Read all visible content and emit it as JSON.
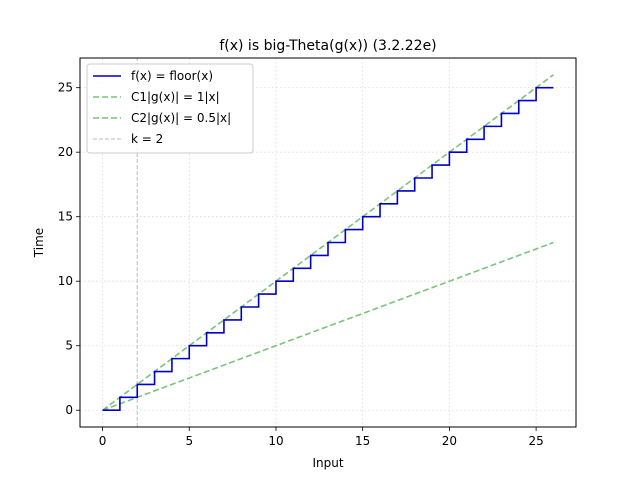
{
  "chart_data": {
    "type": "line",
    "title": "f(x) is big-Theta(g(x)) (3.2.22e)",
    "xlabel": "Input",
    "ylabel": "Time",
    "xlim": [
      -1.3,
      27.3
    ],
    "ylim": [
      -1.3,
      27.3
    ],
    "xticks": [
      0,
      5,
      10,
      15,
      20,
      25
    ],
    "yticks": [
      0,
      5,
      10,
      15,
      20,
      25
    ],
    "grid": true,
    "legend_position": "top-left",
    "series": [
      {
        "name": "f(x) = floor(x)",
        "kind": "step",
        "color": "#0000cc",
        "style": "solid",
        "x": [
          0,
          1,
          1,
          2,
          2,
          3,
          3,
          4,
          4,
          5,
          5,
          6,
          6,
          7,
          7,
          8,
          8,
          9,
          9,
          10,
          10,
          11,
          11,
          12,
          12,
          13,
          13,
          14,
          14,
          15,
          15,
          16,
          16,
          17,
          17,
          18,
          18,
          19,
          19,
          20,
          20,
          21,
          21,
          22,
          22,
          23,
          23,
          24,
          24,
          25,
          25,
          26
        ],
        "y": [
          0,
          0,
          1,
          1,
          2,
          2,
          3,
          3,
          4,
          4,
          5,
          5,
          6,
          6,
          7,
          7,
          8,
          8,
          9,
          9,
          10,
          10,
          11,
          11,
          12,
          12,
          13,
          13,
          14,
          14,
          15,
          15,
          16,
          16,
          17,
          17,
          18,
          18,
          19,
          19,
          20,
          20,
          21,
          21,
          22,
          22,
          23,
          23,
          24,
          24,
          25,
          25
        ]
      },
      {
        "name": "C1|g(x)| = 1|x|",
        "kind": "line",
        "color": "#4caf50",
        "style": "dashed",
        "x": [
          0,
          26
        ],
        "y": [
          0,
          26
        ]
      },
      {
        "name": "C2|g(x)| = 0.5|x|",
        "kind": "line",
        "color": "#4caf50",
        "style": "dashed",
        "x": [
          0,
          26
        ],
        "y": [
          0,
          13
        ]
      },
      {
        "name": "k = 2",
        "kind": "vline",
        "color": "#bbbbbb",
        "style": "dashed",
        "x": [
          2,
          2
        ],
        "y": [
          -1.3,
          27.3
        ]
      }
    ]
  }
}
